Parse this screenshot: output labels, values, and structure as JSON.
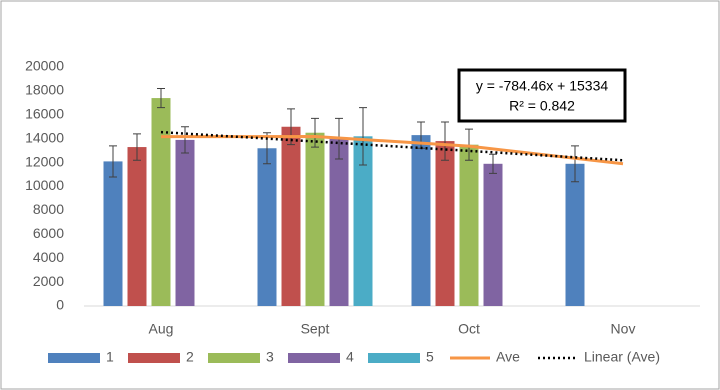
{
  "chart_data": {
    "type": "bar",
    "categories": [
      "Aug",
      "Sept",
      "Oct",
      "Nov"
    ],
    "series": [
      {
        "name": "1",
        "color": "#4f81bd",
        "values": [
          12100,
          13200,
          14300,
          11900
        ],
        "errors": [
          1300,
          1300,
          1100,
          1500
        ]
      },
      {
        "name": "2",
        "color": "#c0504d",
        "values": [
          13300,
          15000,
          13800,
          null
        ],
        "errors": [
          1100,
          1500,
          1600,
          null
        ]
      },
      {
        "name": "3",
        "color": "#9bbb59",
        "values": [
          17400,
          14500,
          13500,
          null
        ],
        "errors": [
          800,
          1200,
          1300,
          null
        ]
      },
      {
        "name": "4",
        "color": "#8064a2",
        "values": [
          13900,
          14000,
          11900,
          null
        ],
        "errors": [
          1100,
          1700,
          800,
          null
        ]
      },
      {
        "name": "5",
        "color": "#4bacc6",
        "values": [
          null,
          14200,
          null,
          null
        ],
        "errors": [
          null,
          2400,
          null,
          null
        ]
      }
    ],
    "lines": [
      {
        "name": "Ave",
        "color": "#f79646",
        "style": "solid",
        "values": [
          14175,
          14180,
          13375,
          11900
        ]
      },
      {
        "name": "Linear (Ave)",
        "color": "#000000",
        "style": "dotted",
        "values": [
          14549.5,
          13765.1,
          12980.6,
          12196.2
        ]
      }
    ],
    "annotations": [
      "y = -784.46x + 15334",
      "R² = 0.842"
    ],
    "ylim": [
      0,
      20000
    ],
    "yticks": [
      0,
      2000,
      4000,
      6000,
      8000,
      10000,
      12000,
      14000,
      16000,
      18000,
      20000
    ],
    "grid": false,
    "legend": "bottom"
  }
}
